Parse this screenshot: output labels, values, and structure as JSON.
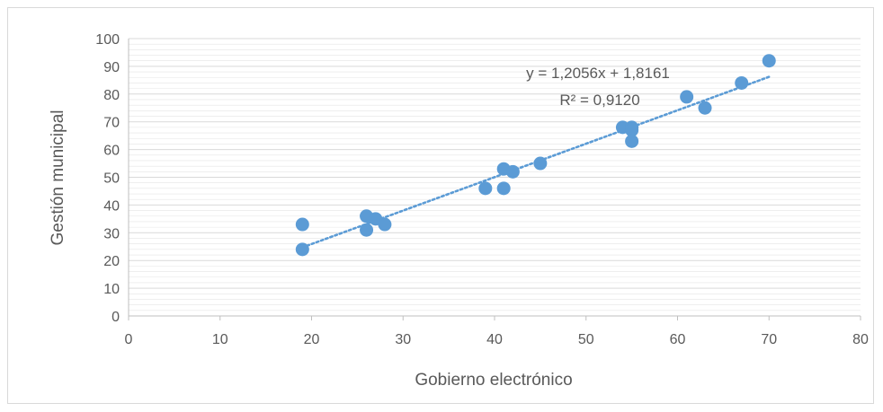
{
  "chart_data": {
    "type": "scatter",
    "xlabel": "Gobierno electrónico",
    "ylabel": "Gestión municipal",
    "xlim": [
      0,
      80
    ],
    "ylim": [
      0,
      100
    ],
    "x_ticks": [
      "0",
      "10",
      "20",
      "30",
      "40",
      "50",
      "60",
      "70",
      "80"
    ],
    "y_ticks": [
      "0",
      "10",
      "20",
      "30",
      "40",
      "50",
      "60",
      "70",
      "80",
      "90",
      "100"
    ],
    "x_tick_values": [
      0,
      10,
      20,
      30,
      40,
      50,
      60,
      70,
      80
    ],
    "y_tick_values": [
      0,
      10,
      20,
      30,
      40,
      50,
      60,
      70,
      80,
      90,
      100
    ],
    "grid": true,
    "marker_color": "#5b9bd5",
    "trendline_color": "#5b9bd5",
    "gridline_color": "#d9d9d9",
    "points": [
      {
        "x": 19,
        "y": 33
      },
      {
        "x": 19,
        "y": 24
      },
      {
        "x": 26,
        "y": 36
      },
      {
        "x": 27,
        "y": 35
      },
      {
        "x": 28,
        "y": 33
      },
      {
        "x": 26,
        "y": 31
      },
      {
        "x": 39,
        "y": 46
      },
      {
        "x": 41,
        "y": 53
      },
      {
        "x": 42,
        "y": 52
      },
      {
        "x": 41,
        "y": 46
      },
      {
        "x": 45,
        "y": 55
      },
      {
        "x": 54,
        "y": 68
      },
      {
        "x": 55,
        "y": 68
      },
      {
        "x": 55,
        "y": 67
      },
      {
        "x": 55,
        "y": 63
      },
      {
        "x": 61,
        "y": 79
      },
      {
        "x": 63,
        "y": 75
      },
      {
        "x": 67,
        "y": 84
      },
      {
        "x": 70,
        "y": 92
      }
    ],
    "trendline": {
      "slope": 1.2056,
      "intercept": 1.8161,
      "x_range": [
        19,
        70
      ],
      "equation_label": "y = 1,2056x + 1,8161",
      "r2_label": "R² = 0,9120"
    }
  }
}
